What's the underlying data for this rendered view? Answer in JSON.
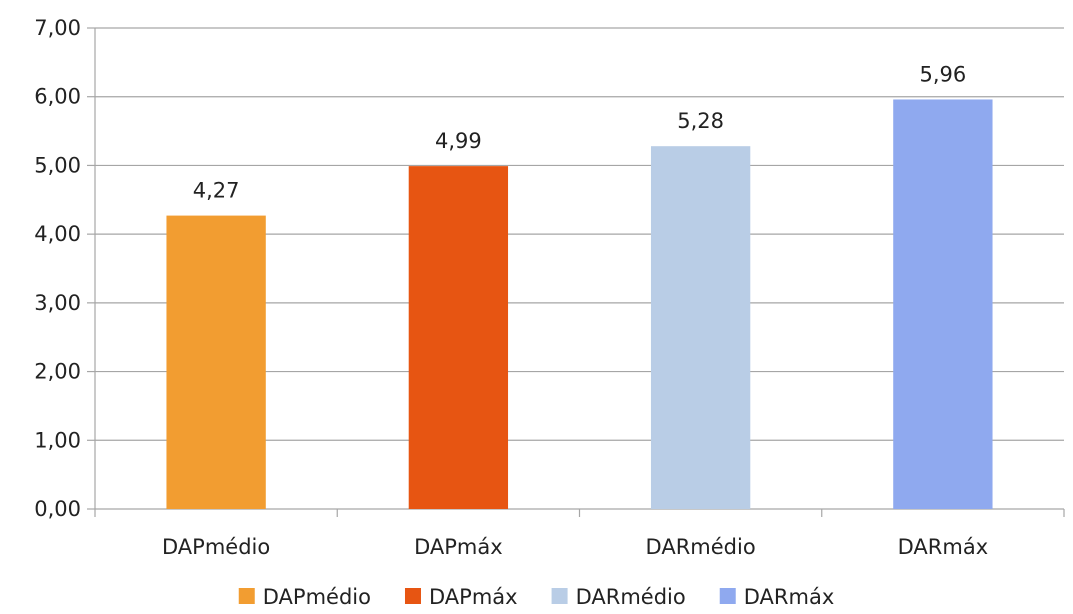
{
  "chart_data": {
    "type": "bar",
    "title": "",
    "xlabel": "",
    "ylabel": "",
    "categories": [
      "DAPmédio",
      "DAPmáx",
      "DARmédio",
      "DARmáx"
    ],
    "values": [
      4.27,
      4.99,
      5.28,
      5.96
    ],
    "value_labels": [
      "4,27",
      "4,99",
      "5,28",
      "5,96"
    ],
    "colors": [
      "#F29D31",
      "#E75512",
      "#B9CDE6",
      "#8FA9EF"
    ],
    "ylim": [
      0,
      7
    ],
    "y_ticks": [
      0,
      1,
      2,
      3,
      4,
      5,
      6,
      7
    ],
    "y_tick_labels": [
      "0,00",
      "1,00",
      "2,00",
      "3,00",
      "4,00",
      "5,00",
      "6,00",
      "7,00"
    ],
    "grid": true,
    "grid_color": "#a6a6a6",
    "legend": {
      "placement": "bottom",
      "entries": [
        "DAPmédio",
        "DAPmáx",
        "DARmédio",
        "DARmáx"
      ]
    }
  }
}
